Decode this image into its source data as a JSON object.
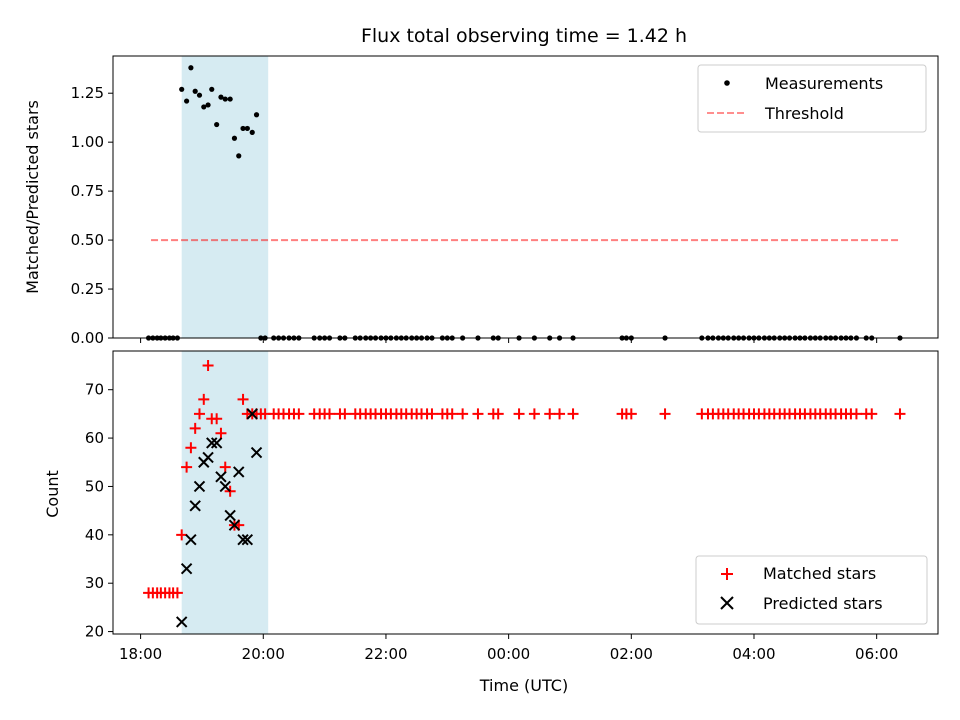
{
  "chart_data": [
    {
      "type": "scatter",
      "title": "Flux total observing time = 1.42 h",
      "ylabel": "Matched/Predicted stars",
      "xlabel": "",
      "x_unit": "hours since 18:00 UTC",
      "xlim": [
        -0.45,
        13.0
      ],
      "ylim": [
        0.0,
        1.44
      ],
      "yticks": [
        0.0,
        0.25,
        0.5,
        0.75,
        1.0,
        1.25
      ],
      "ytick_labels": [
        "0.00",
        "0.25",
        "0.50",
        "0.75",
        "1.00",
        "1.25"
      ],
      "highlight_span": [
        0.67,
        2.08
      ],
      "highlight_color": "#add8e6",
      "legend_position": "upper right",
      "threshold": {
        "name": "Threshold",
        "value": 0.5,
        "x_range": [
          0.17,
          12.38
        ],
        "color": "#ff0000",
        "style": "dashed"
      },
      "series": [
        {
          "name": "Measurements",
          "color": "#000000",
          "marker": "dot",
          "x": [
            0.13,
            0.2,
            0.27,
            0.33,
            0.4,
            0.47,
            0.53,
            0.6,
            0.67,
            0.75,
            0.82,
            0.89,
            0.96,
            1.03,
            1.1,
            1.16,
            1.24,
            1.31,
            1.38,
            1.46,
            1.53,
            1.6,
            1.67,
            1.74,
            1.82,
            1.89,
            1.96,
            2.03,
            2.17,
            2.25,
            2.33,
            2.42,
            2.5,
            2.58,
            2.83,
            2.92,
            3.0,
            3.08,
            3.25,
            3.33,
            3.5,
            3.58,
            3.67,
            3.75,
            3.83,
            3.92,
            4.0,
            4.08,
            4.17,
            4.25,
            4.33,
            4.42,
            4.5,
            4.58,
            4.67,
            4.75,
            4.92,
            5.0,
            5.08,
            5.25,
            5.5,
            5.75,
            5.83,
            6.17,
            6.42,
            6.67,
            6.83,
            7.05,
            7.85,
            7.92,
            8.0,
            8.55,
            9.15,
            9.25,
            9.33,
            9.42,
            9.5,
            9.58,
            9.67,
            9.75,
            9.83,
            9.92,
            10.0,
            10.08,
            10.17,
            10.25,
            10.33,
            10.42,
            10.5,
            10.58,
            10.67,
            10.75,
            10.83,
            10.92,
            11.0,
            11.08,
            11.17,
            11.25,
            11.33,
            11.42,
            11.5,
            11.58,
            11.67,
            11.83,
            11.92,
            12.38
          ],
          "y": [
            0,
            0,
            0,
            0,
            0,
            0,
            0,
            0,
            1.27,
            1.21,
            1.38,
            1.26,
            1.24,
            1.18,
            1.19,
            1.27,
            1.09,
            1.23,
            1.22,
            1.22,
            1.02,
            0.93,
            1.07,
            1.07,
            1.05,
            1.14,
            0,
            0,
            0,
            0,
            0,
            0,
            0,
            0,
            0,
            0,
            0,
            0,
            0,
            0,
            0,
            0,
            0,
            0,
            0,
            0,
            0,
            0,
            0,
            0,
            0,
            0,
            0,
            0,
            0,
            0,
            0,
            0,
            0,
            0,
            0,
            0,
            0,
            0,
            0,
            0,
            0,
            0,
            0,
            0,
            0,
            0,
            0,
            0,
            0,
            0,
            0,
            0,
            0,
            0,
            0,
            0,
            0,
            0,
            0,
            0,
            0,
            0,
            0,
            0,
            0,
            0,
            0,
            0,
            0,
            0,
            0,
            0,
            0,
            0,
            0,
            0,
            0,
            0,
            0,
            0
          ]
        }
      ]
    },
    {
      "type": "scatter",
      "title": "",
      "ylabel": "Count",
      "xlabel": "Time (UTC)",
      "x_unit": "hours since 18:00 UTC",
      "xlim": [
        -0.45,
        13.0
      ],
      "ylim": [
        19.5,
        78.0
      ],
      "yticks": [
        20,
        30,
        40,
        50,
        60,
        70
      ],
      "ytick_labels": [
        "20",
        "30",
        "40",
        "50",
        "60",
        "70"
      ],
      "xticks": [
        0,
        2,
        4,
        6,
        8,
        10,
        12
      ],
      "xtick_labels": [
        "18:00",
        "20:00",
        "22:00",
        "00:00",
        "02:00",
        "04:00",
        "06:00"
      ],
      "highlight_span": [
        0.67,
        2.08
      ],
      "highlight_color": "#add8e6",
      "legend_position": "lower right",
      "series": [
        {
          "name": "Matched stars",
          "color": "#ff0000",
          "marker": "plus",
          "x": [
            0.13,
            0.2,
            0.27,
            0.33,
            0.4,
            0.47,
            0.53,
            0.6,
            0.67,
            0.75,
            0.82,
            0.89,
            0.96,
            1.03,
            1.1,
            1.16,
            1.24,
            1.31,
            1.38,
            1.46,
            1.53,
            1.6,
            1.67,
            1.74,
            1.82,
            1.89,
            1.96,
            2.03,
            2.17,
            2.25,
            2.33,
            2.42,
            2.5,
            2.58,
            2.83,
            2.92,
            3.0,
            3.08,
            3.25,
            3.33,
            3.5,
            3.58,
            3.67,
            3.75,
            3.83,
            3.92,
            4.0,
            4.08,
            4.17,
            4.25,
            4.33,
            4.42,
            4.5,
            4.58,
            4.67,
            4.75,
            4.92,
            5.0,
            5.08,
            5.25,
            5.5,
            5.75,
            5.83,
            6.17,
            6.42,
            6.67,
            6.83,
            7.05,
            7.85,
            7.92,
            8.0,
            8.55,
            9.15,
            9.25,
            9.33,
            9.42,
            9.5,
            9.58,
            9.67,
            9.75,
            9.83,
            9.92,
            10.0,
            10.08,
            10.17,
            10.25,
            10.33,
            10.42,
            10.5,
            10.58,
            10.67,
            10.75,
            10.83,
            10.92,
            11.0,
            11.08,
            11.17,
            11.25,
            11.33,
            11.42,
            11.5,
            11.58,
            11.67,
            11.83,
            11.92,
            12.38
          ],
          "y": [
            28,
            28,
            28,
            28,
            28,
            28,
            28,
            28,
            40,
            54,
            58,
            62,
            65,
            68,
            75,
            64,
            64,
            61,
            54,
            49,
            42,
            42,
            68,
            65,
            65,
            65,
            65,
            65,
            65,
            65,
            65,
            65,
            65,
            65,
            65,
            65,
            65,
            65,
            65,
            65,
            65,
            65,
            65,
            65,
            65,
            65,
            65,
            65,
            65,
            65,
            65,
            65,
            65,
            65,
            65,
            65,
            65,
            65,
            65,
            65,
            65,
            65,
            65,
            65,
            65,
            65,
            65,
            65,
            65,
            65,
            65,
            65,
            65,
            65,
            65,
            65,
            65,
            65,
            65,
            65,
            65,
            65,
            65,
            65,
            65,
            65,
            65,
            65,
            65,
            65,
            65,
            65,
            65,
            65,
            65,
            65,
            65,
            65,
            65,
            65,
            65,
            65,
            65,
            65,
            65,
            65
          ]
        },
        {
          "name": "Predicted stars",
          "color": "#000000",
          "marker": "x",
          "x": [
            0.67,
            0.75,
            0.82,
            0.89,
            0.96,
            1.03,
            1.1,
            1.16,
            1.24,
            1.31,
            1.38,
            1.46,
            1.53,
            1.6,
            1.67,
            1.74,
            1.82,
            1.89
          ],
          "y": [
            22,
            33,
            39,
            46,
            50,
            55,
            56,
            59,
            59,
            52,
            50,
            44,
            42,
            53,
            39,
            39,
            65,
            57
          ]
        }
      ]
    }
  ]
}
